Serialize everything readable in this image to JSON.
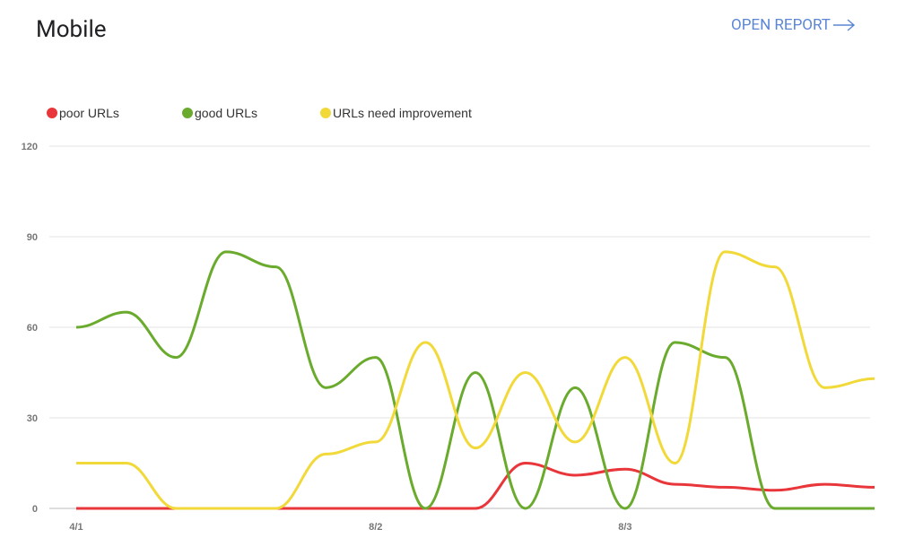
{
  "header": {
    "title": "Mobile",
    "link": "OPEN REPORT"
  },
  "chart_data": {
    "type": "line",
    "categories": [
      "4/1",
      null,
      null,
      null,
      null,
      null,
      "8/2",
      null,
      null,
      null,
      null,
      "8/3",
      null,
      null,
      null,
      null,
      null
    ],
    "series": [
      {
        "name": "poor URLs",
        "color": "#e8363a",
        "values": [
          0,
          0,
          0,
          0,
          0,
          0,
          0,
          0,
          0,
          15,
          11,
          13,
          8,
          7,
          6,
          8,
          7
        ]
      },
      {
        "name": "good URLs",
        "color": "#6aab2e",
        "values": [
          60,
          65,
          50,
          85,
          80,
          40,
          50,
          0,
          45,
          0,
          40,
          0,
          55,
          50,
          0,
          0,
          0
        ]
      },
      {
        "name": "URLs need improvement",
        "color": "#f2d93a",
        "values": [
          15,
          15,
          0,
          0,
          0,
          18,
          22,
          55,
          20,
          45,
          22,
          50,
          15,
          85,
          80,
          40,
          43
        ]
      }
    ],
    "ylim": [
      0,
      120
    ],
    "yticks": [
      0,
      30,
      60,
      90,
      120
    ],
    "grid": true,
    "legend": "top-left"
  }
}
